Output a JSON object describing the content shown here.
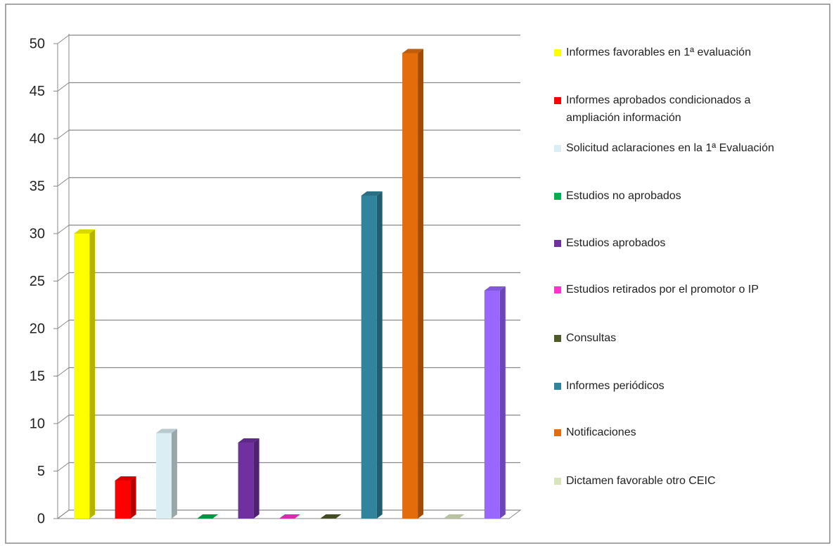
{
  "chart_data": {
    "type": "bar",
    "categories": [
      "Informes favorables en 1ª evaluación",
      "Informes aprobados condicionados a ampliación información",
      "Solicitud aclaraciones en la 1ª Evaluación",
      "Estudios no aprobados",
      "Estudios aprobados",
      "Estudios retirados por el promotor o IP",
      "Consultas",
      "Informes periódicos",
      "Notificaciones",
      "Dictamen favorable otro CEIC",
      null
    ],
    "values": [
      30,
      4,
      9,
      0,
      8,
      0,
      0,
      34,
      49,
      0,
      24
    ],
    "colors": [
      "#ffff00",
      "#ff0000",
      "#daeef3",
      "#00b050",
      "#7030a0",
      "#ff33cc",
      "#4f5a2a",
      "#31849b",
      "#e46c0a",
      "#d7e4bd",
      "#9966ff"
    ],
    "ylim": [
      0,
      50
    ],
    "yticks": [
      0,
      5,
      10,
      15,
      20,
      25,
      30,
      35,
      40,
      45,
      50
    ],
    "grid": true,
    "legend": "right"
  }
}
